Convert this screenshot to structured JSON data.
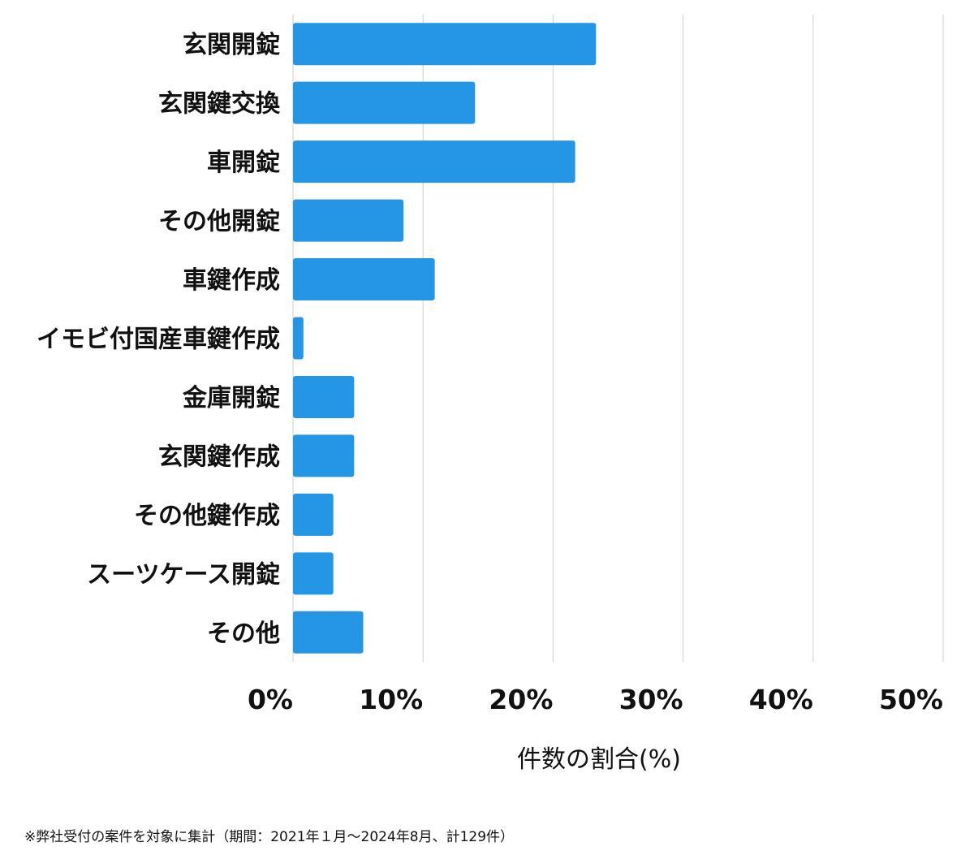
{
  "chart_data": {
    "type": "bar",
    "orientation": "horizontal",
    "categories": [
      "玄関開錠",
      "玄関鍵交換",
      "車開錠",
      "その他開錠",
      "車鍵作成",
      "イモビ付国産車鍵作成",
      "金庫開錠",
      "玄関鍵作成",
      "その他鍵作成",
      "スーツケース開錠",
      "その他"
    ],
    "values": [
      23.3,
      14.0,
      21.7,
      8.5,
      10.9,
      0.8,
      4.7,
      4.7,
      3.1,
      3.1,
      5.4
    ],
    "xlim": [
      0,
      50
    ],
    "xticks": [
      "0%",
      "10%",
      "20%",
      "30%",
      "40%",
      "50%"
    ],
    "xlabel": "件数の割合(%)",
    "ylabel": "",
    "title": "",
    "grid": "vertical",
    "bar_color": "#2595e6",
    "grid_color": "#cccccc"
  },
  "footnote": "※弊社受付の案件を対象に集計（期間：2021年１月〜2024年8月、計129件）"
}
